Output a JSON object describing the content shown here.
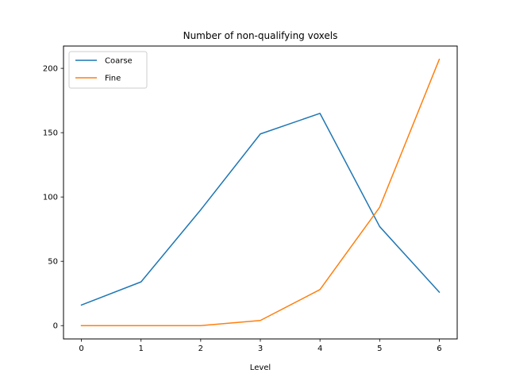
{
  "chart_data": {
    "type": "line",
    "title": "Number of non-qualifying voxels",
    "xlabel": "Level",
    "ylabel": "",
    "x": [
      0,
      1,
      2,
      3,
      4,
      5,
      6
    ],
    "xticks": [
      "0",
      "1",
      "2",
      "3",
      "4",
      "5",
      "6"
    ],
    "yticks": [
      "0",
      "50",
      "100",
      "150",
      "200"
    ],
    "xlim": [
      -0.3,
      6.3
    ],
    "ylim": [
      -10.35,
      217.35
    ],
    "grid": false,
    "legend_position": "top-left",
    "series": [
      {
        "name": "Coarse",
        "color": "#1f77b4",
        "values": [
          16,
          34,
          90,
          149,
          165,
          77,
          26
        ]
      },
      {
        "name": "Fine",
        "color": "#ff7f0e",
        "values": [
          0,
          0,
          0,
          4,
          28,
          92,
          207
        ]
      }
    ]
  }
}
